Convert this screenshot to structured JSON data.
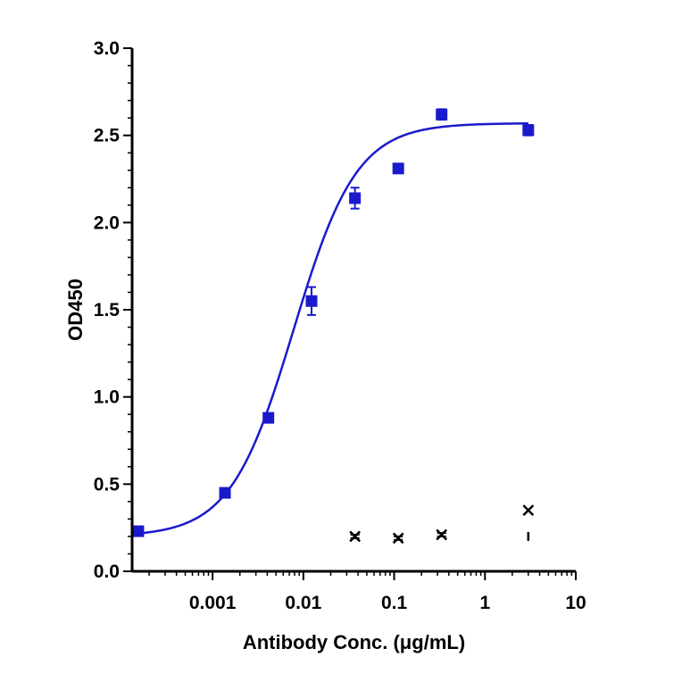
{
  "chart_data": {
    "type": "scatter",
    "title": "",
    "xlabel": "Antibody Conc. (μg/mL)",
    "ylabel": "OD450",
    "x_scale": "log",
    "xlim": [
      0.00013,
      10
    ],
    "ylim": [
      0,
      3.0
    ],
    "x_ticks": [
      0.001,
      0.01,
      0.1,
      1,
      10
    ],
    "x_tick_labels": [
      "0.001",
      "0.01",
      "0.1",
      "1",
      "10"
    ],
    "y_ticks": [
      0,
      0.5,
      1.0,
      1.5,
      2.0,
      2.5,
      3.0
    ],
    "y_tick_labels": [
      "0.0",
      "0.5",
      "1.0",
      "1.5",
      "2.0",
      "2.5",
      "3.0"
    ],
    "grid": false,
    "legend": "none",
    "series": [
      {
        "marker": "square",
        "color": "#1a1acc",
        "x": [
          0.000152,
          0.00137,
          0.00412,
          0.0123,
          0.037,
          0.111,
          0.333,
          3.0
        ],
        "y": [
          0.23,
          0.45,
          0.88,
          1.55,
          2.14,
          2.31,
          2.62,
          2.53
        ],
        "y_err": [
          0.01,
          0.01,
          0.02,
          0.08,
          0.06,
          0.02,
          0.03,
          0.03
        ]
      },
      {
        "marker": "x",
        "color": "#000000",
        "x": [
          0.037,
          0.111,
          0.333,
          3.0
        ],
        "y": [
          0.2,
          0.19,
          0.21,
          0.35
        ],
        "y_err": [
          0.01,
          0.01,
          0.01,
          0.0
        ]
      }
    ],
    "fit_curve": {
      "type": "4PL",
      "color": "#1a1acc",
      "bottom": 0.2,
      "top": 2.57,
      "ec50": 0.0078,
      "hill": 1.25
    },
    "extra_marks": [
      {
        "shape": "dash",
        "x": 3.0,
        "y": 0.2,
        "color": "#000000"
      }
    ]
  }
}
